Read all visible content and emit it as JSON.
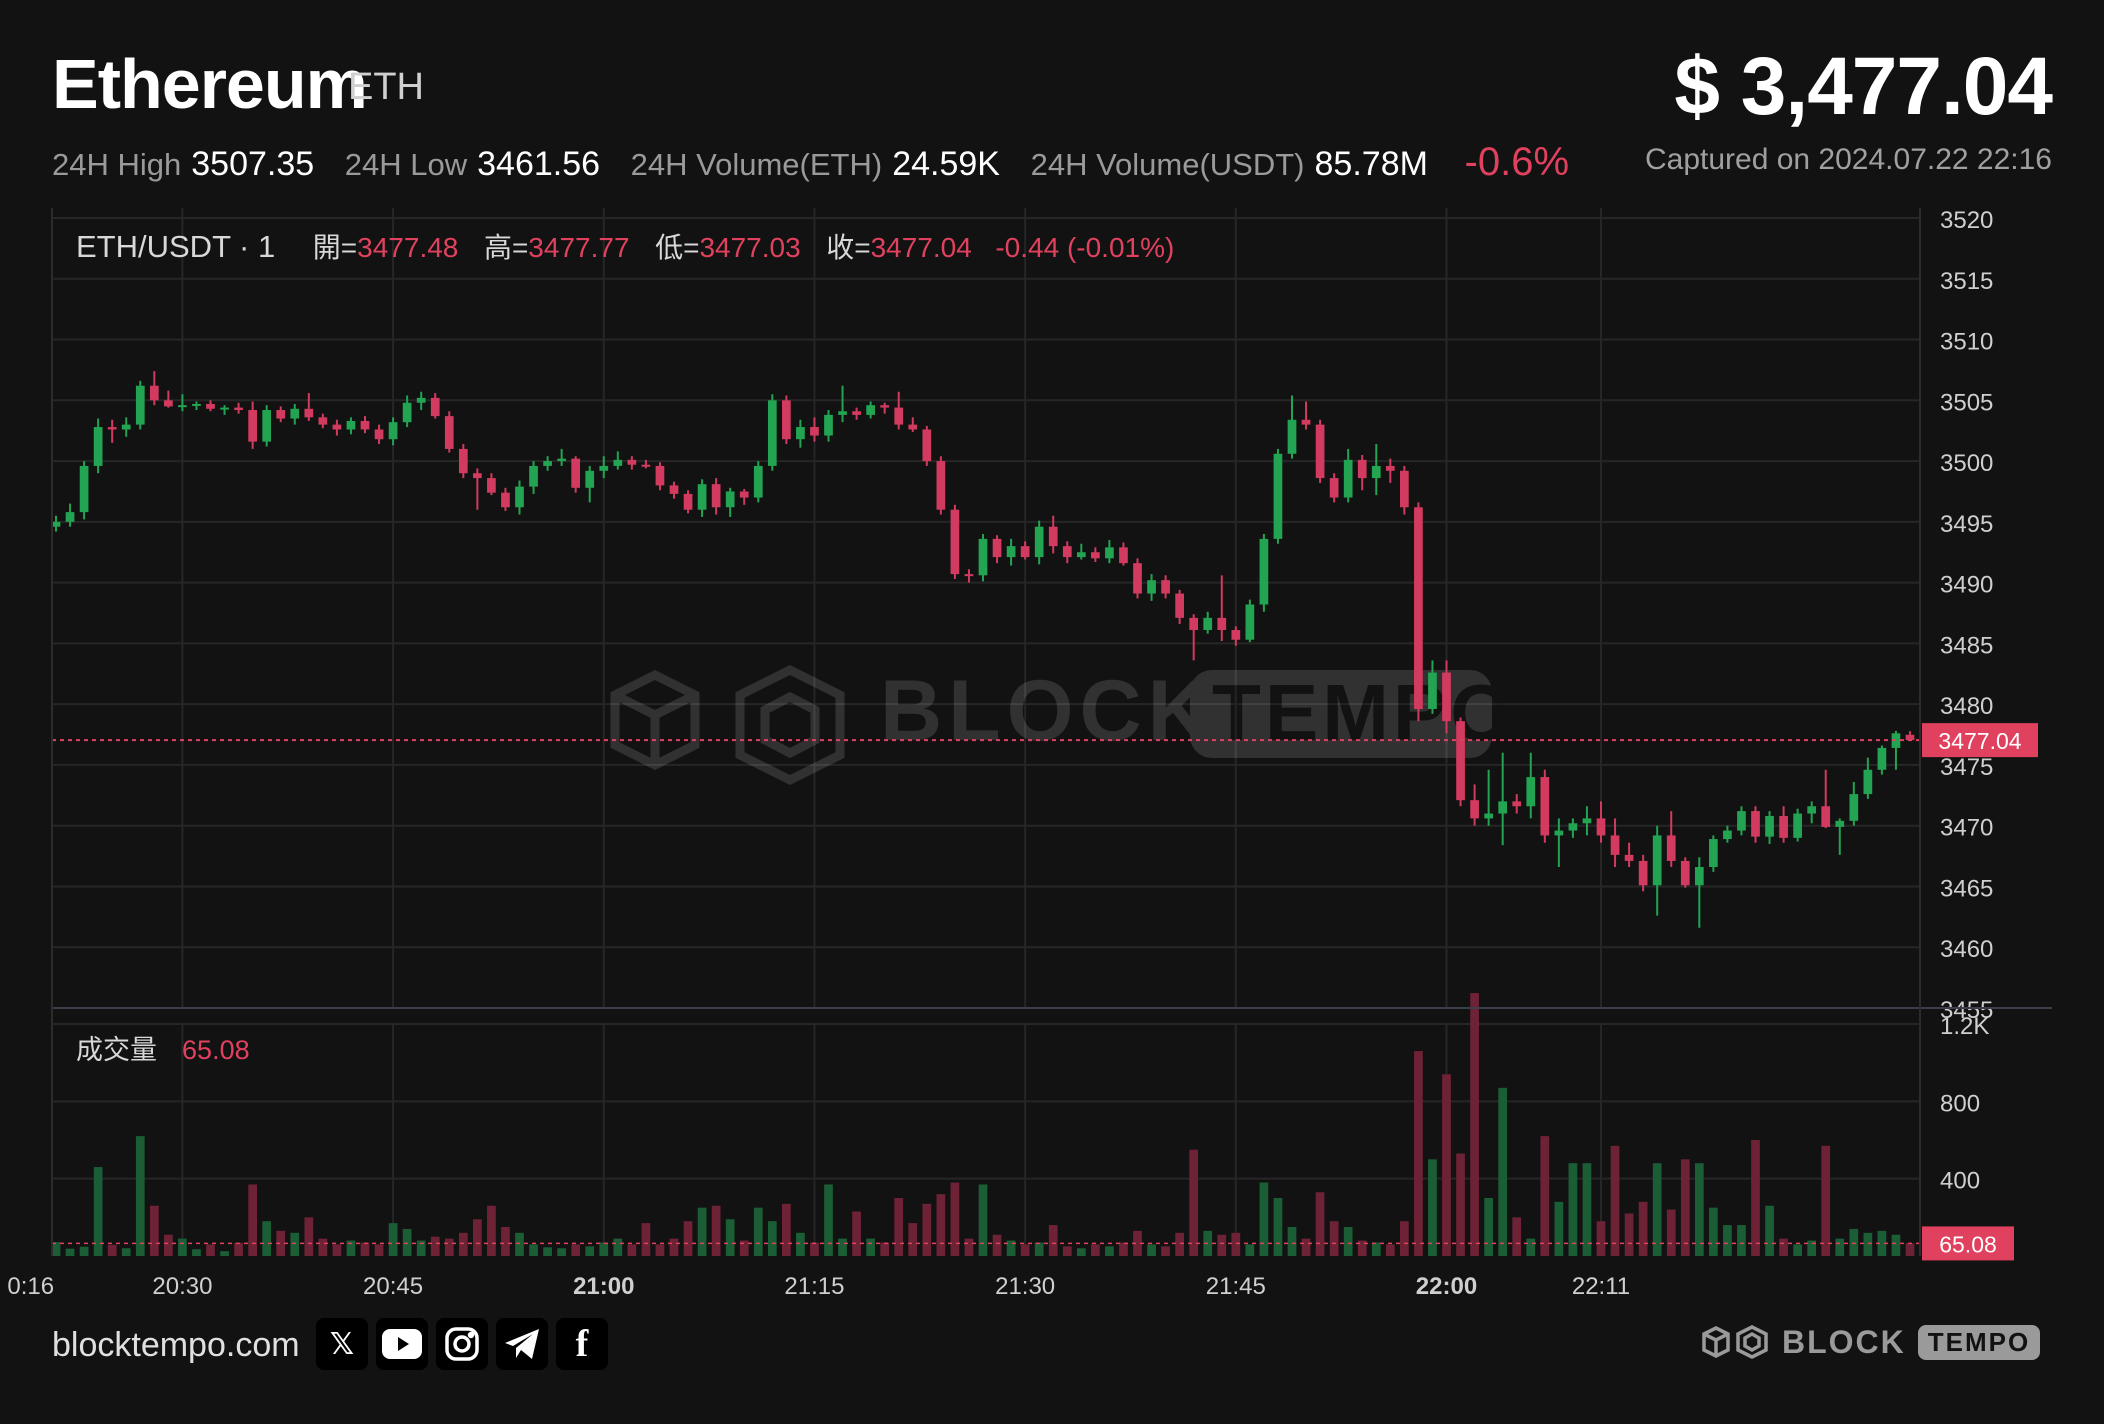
{
  "header": {
    "name": "Ethereum",
    "symbol": "ETH",
    "price": "$ 3,477.04",
    "captured": "Captured on 2024.07.22 22:16",
    "stats": [
      {
        "label": "24H High",
        "value": "3507.35"
      },
      {
        "label": "24H Low",
        "value": "3461.56"
      },
      {
        "label": "24H Volume(ETH)",
        "value": "24.59K"
      },
      {
        "label": "24H Volume(USDT)",
        "value": "85.78M"
      }
    ],
    "change": "-0.6%"
  },
  "ohlc_legend": {
    "pair": "ETH/USDT · 1",
    "open_label": "開=",
    "open": "3477.48",
    "high_label": "高=",
    "high": "3477.77",
    "low_label": "低=",
    "low": "3477.03",
    "close_label": "收=",
    "close": "3477.04",
    "change": "-0.44 (-0.01%)"
  },
  "volume_legend": {
    "label": "成交量",
    "value": "65.08"
  },
  "watermark": "BLOCKTEMPO",
  "footer": {
    "site": "blocktempo.com",
    "socials": [
      "x-icon",
      "youtube-icon",
      "instagram-icon",
      "telegram-icon",
      "facebook-icon"
    ],
    "brand_left": "BLOCK",
    "brand_right": "TEMPO"
  },
  "colors": {
    "up": "#22a452",
    "down": "#d23b5f",
    "bg": "#121212",
    "grid": "#262626",
    "label": "#e0415e"
  },
  "chart_data": {
    "type": "candlestick",
    "interval": "1m",
    "x_labels": [
      "0:16",
      "20:30",
      "20:45",
      "21:00",
      "21:15",
      "21:30",
      "21:45",
      "22:00",
      "22:11"
    ],
    "y_ticks": [
      3455,
      3460,
      3465,
      3470,
      3475,
      3480,
      3485,
      3490,
      3495,
      3500,
      3505,
      3510,
      3515,
      3520
    ],
    "y_range": [
      3455,
      3520
    ],
    "vol_ticks": [
      "400",
      "800",
      "1.2K"
    ],
    "vol_range": [
      0,
      1200
    ],
    "last_price_label": "3477.04",
    "last_volume_label": "65.08",
    "candles": [
      [
        3494.6,
        3495.5,
        3494.2,
        3495.0,
        72
      ],
      [
        3495.0,
        3496.5,
        3494.6,
        3495.8,
        38
      ],
      [
        3495.8,
        3500.0,
        3495.2,
        3499.6,
        48
      ],
      [
        3499.6,
        3503.5,
        3499.0,
        3502.8,
        460
      ],
      [
        3502.8,
        3503.4,
        3501.5,
        3502.6,
        58
      ],
      [
        3502.6,
        3503.6,
        3502.0,
        3503.0,
        40
      ],
      [
        3503.0,
        3506.6,
        3502.6,
        3506.2,
        620
      ],
      [
        3506.2,
        3507.4,
        3504.6,
        3505.0,
        260
      ],
      [
        3505.0,
        3505.8,
        3504.4,
        3504.5,
        110
      ],
      [
        3504.5,
        3505.5,
        3504.1,
        3504.6,
        90
      ],
      [
        3504.6,
        3504.9,
        3504.2,
        3504.7,
        35
      ],
      [
        3504.7,
        3505.0,
        3504.1,
        3504.3,
        60
      ],
      [
        3504.3,
        3504.6,
        3503.8,
        3504.4,
        25
      ],
      [
        3504.4,
        3504.8,
        3503.9,
        3504.2,
        68
      ],
      [
        3504.2,
        3504.9,
        3501.0,
        3501.6,
        370
      ],
      [
        3501.6,
        3504.6,
        3501.2,
        3504.2,
        180
      ],
      [
        3504.2,
        3504.5,
        3503.2,
        3503.5,
        130
      ],
      [
        3503.5,
        3504.7,
        3503.0,
        3504.3,
        120
      ],
      [
        3504.3,
        3505.6,
        3503.3,
        3503.6,
        200
      ],
      [
        3503.6,
        3503.9,
        3502.7,
        3503.0,
        90
      ],
      [
        3503.0,
        3503.4,
        3502.1,
        3502.6,
        60
      ],
      [
        3502.6,
        3503.6,
        3502.2,
        3503.3,
        80
      ],
      [
        3503.3,
        3503.7,
        3502.3,
        3502.6,
        70
      ],
      [
        3502.6,
        3503.0,
        3501.4,
        3501.8,
        60
      ],
      [
        3501.8,
        3503.6,
        3501.3,
        3503.2,
        170
      ],
      [
        3503.2,
        3505.4,
        3502.8,
        3504.8,
        140
      ],
      [
        3504.8,
        3505.7,
        3504.2,
        3505.2,
        80
      ],
      [
        3505.2,
        3505.6,
        3503.5,
        3503.7,
        100
      ],
      [
        3503.7,
        3504.1,
        3500.7,
        3501.0,
        90
      ],
      [
        3501.0,
        3501.4,
        3498.6,
        3499.0,
        120
      ],
      [
        3499.0,
        3499.4,
        3496.0,
        3498.6,
        190
      ],
      [
        3498.6,
        3499.0,
        3497.2,
        3497.4,
        260
      ],
      [
        3497.4,
        3497.8,
        3495.9,
        3496.2,
        150
      ],
      [
        3496.2,
        3498.4,
        3495.6,
        3497.9,
        120
      ],
      [
        3497.9,
        3500.0,
        3497.3,
        3499.6,
        60
      ],
      [
        3499.6,
        3500.4,
        3499.2,
        3500.0,
        45
      ],
      [
        3500.0,
        3501.0,
        3499.6,
        3500.2,
        40
      ],
      [
        3500.2,
        3500.4,
        3497.4,
        3497.8,
        60
      ],
      [
        3497.8,
        3499.6,
        3496.6,
        3499.2,
        50
      ],
      [
        3499.2,
        3500.4,
        3498.6,
        3499.6,
        70
      ],
      [
        3499.6,
        3500.8,
        3499.3,
        3500.1,
        90
      ],
      [
        3500.1,
        3500.4,
        3499.3,
        3499.7,
        60
      ],
      [
        3499.7,
        3500.1,
        3499.4,
        3499.6,
        170
      ],
      [
        3499.6,
        3499.9,
        3497.6,
        3498.0,
        60
      ],
      [
        3498.0,
        3498.3,
        3496.9,
        3497.3,
        90
      ],
      [
        3497.3,
        3497.6,
        3495.7,
        3496.0,
        180
      ],
      [
        3496.0,
        3498.5,
        3495.4,
        3498.1,
        250
      ],
      [
        3498.1,
        3498.6,
        3495.6,
        3496.2,
        260
      ],
      [
        3496.2,
        3497.8,
        3495.4,
        3497.5,
        190
      ],
      [
        3497.5,
        3497.7,
        3496.4,
        3497.0,
        80
      ],
      [
        3497.0,
        3500.0,
        3496.6,
        3499.6,
        250
      ],
      [
        3499.6,
        3505.5,
        3499.2,
        3505.0,
        180
      ],
      [
        3505.0,
        3505.4,
        3501.4,
        3501.8,
        270
      ],
      [
        3501.8,
        3503.4,
        3501.1,
        3502.8,
        120
      ],
      [
        3502.8,
        3503.6,
        3501.6,
        3502.1,
        70
      ],
      [
        3502.1,
        3504.2,
        3501.6,
        3503.8,
        370
      ],
      [
        3503.8,
        3506.2,
        3503.2,
        3504.1,
        90
      ],
      [
        3504.1,
        3504.4,
        3503.4,
        3503.8,
        230
      ],
      [
        3503.8,
        3504.9,
        3503.5,
        3504.6,
        90
      ],
      [
        3504.6,
        3504.8,
        3503.9,
        3504.4,
        70
      ],
      [
        3504.4,
        3505.7,
        3502.6,
        3503.0,
        300
      ],
      [
        3503.0,
        3503.6,
        3502.4,
        3502.6,
        170
      ],
      [
        3502.6,
        3502.9,
        3499.6,
        3500.0,
        270
      ],
      [
        3500.0,
        3500.4,
        3495.6,
        3496.0,
        320
      ],
      [
        3496.0,
        3496.4,
        3490.3,
        3490.7,
        380
      ],
      [
        3490.7,
        3491.1,
        3490.0,
        3490.6,
        90
      ],
      [
        3490.6,
        3494.0,
        3490.1,
        3493.6,
        370
      ],
      [
        3493.6,
        3493.9,
        3491.6,
        3492.1,
        110
      ],
      [
        3492.1,
        3493.6,
        3491.4,
        3493.0,
        80
      ],
      [
        3493.0,
        3493.4,
        3491.9,
        3492.1,
        60
      ],
      [
        3492.1,
        3495.1,
        3491.5,
        3494.6,
        70
      ],
      [
        3494.6,
        3495.5,
        3492.4,
        3493.0,
        160
      ],
      [
        3493.0,
        3493.4,
        3491.6,
        3492.1,
        50
      ],
      [
        3492.1,
        3493.2,
        3491.9,
        3492.5,
        40
      ],
      [
        3492.5,
        3492.9,
        3491.7,
        3492.0,
        60
      ],
      [
        3492.0,
        3493.5,
        3491.6,
        3492.9,
        50
      ],
      [
        3492.9,
        3493.3,
        3491.4,
        3491.6,
        70
      ],
      [
        3491.6,
        3492.0,
        3488.7,
        3489.1,
        130
      ],
      [
        3489.1,
        3490.7,
        3488.5,
        3490.2,
        60
      ],
      [
        3490.2,
        3490.6,
        3488.7,
        3489.1,
        50
      ],
      [
        3489.1,
        3489.4,
        3486.6,
        3487.1,
        120
      ],
      [
        3487.1,
        3487.4,
        3483.6,
        3486.1,
        550
      ],
      [
        3486.1,
        3487.6,
        3485.8,
        3487.1,
        130
      ],
      [
        3487.1,
        3490.6,
        3485.2,
        3486.1,
        110
      ],
      [
        3486.1,
        3486.4,
        3484.8,
        3485.3,
        120
      ],
      [
        3485.3,
        3488.6,
        3485.1,
        3488.2,
        60
      ],
      [
        3488.2,
        3494.0,
        3487.6,
        3493.6,
        380
      ],
      [
        3493.6,
        3501.0,
        3493.2,
        3500.6,
        300
      ],
      [
        3500.6,
        3505.4,
        3500.2,
        3503.4,
        150
      ],
      [
        3503.4,
        3504.9,
        3502.6,
        3503.0,
        90
      ],
      [
        3503.0,
        3503.4,
        3498.2,
        3498.6,
        330
      ],
      [
        3498.6,
        3499.0,
        3496.6,
        3497.0,
        180
      ],
      [
        3497.0,
        3501.0,
        3496.6,
        3500.1,
        150
      ],
      [
        3500.1,
        3500.5,
        3497.6,
        3498.6,
        80
      ],
      [
        3498.6,
        3501.4,
        3497.2,
        3499.6,
        70
      ],
      [
        3499.6,
        3500.2,
        3498.2,
        3499.2,
        60
      ],
      [
        3499.2,
        3499.6,
        3495.6,
        3496.2,
        180
      ],
      [
        3496.2,
        3496.6,
        3478.6,
        3479.6,
        1060
      ],
      [
        3479.6,
        3483.6,
        3479.2,
        3482.6,
        500
      ],
      [
        3482.6,
        3483.6,
        3477.6,
        3478.6,
        940
      ],
      [
        3478.6,
        3478.9,
        3471.6,
        3472.1,
        530
      ],
      [
        3472.1,
        3473.4,
        3470.0,
        3470.6,
        1360
      ],
      [
        3470.6,
        3474.6,
        3470.0,
        3471.0,
        300
      ],
      [
        3471.0,
        3476.0,
        3468.4,
        3472.0,
        870
      ],
      [
        3472.0,
        3472.6,
        3471.0,
        3471.6,
        200
      ],
      [
        3471.6,
        3476.0,
        3470.6,
        3474.0,
        90
      ],
      [
        3474.0,
        3474.6,
        3468.6,
        3469.2,
        620
      ],
      [
        3469.2,
        3470.6,
        3466.6,
        3469.6,
        280
      ],
      [
        3469.6,
        3470.6,
        3469.0,
        3470.2,
        480
      ],
      [
        3470.2,
        3471.6,
        3469.2,
        3470.6,
        480
      ],
      [
        3470.6,
        3472.0,
        3468.6,
        3469.2,
        180
      ],
      [
        3469.2,
        3470.6,
        3466.6,
        3467.6,
        570
      ],
      [
        3467.6,
        3468.6,
        3466.6,
        3467.1,
        220
      ],
      [
        3467.1,
        3467.6,
        3464.6,
        3465.1,
        280
      ],
      [
        3465.1,
        3470.0,
        3462.6,
        3469.2,
        480
      ],
      [
        3469.2,
        3471.2,
        3466.6,
        3467.1,
        240
      ],
      [
        3467.1,
        3467.4,
        3464.9,
        3465.1,
        500
      ],
      [
        3465.1,
        3467.4,
        3461.6,
        3466.6,
        480
      ],
      [
        3466.6,
        3469.2,
        3466.2,
        3468.9,
        250
      ],
      [
        3468.9,
        3470.0,
        3468.6,
        3469.6,
        160
      ],
      [
        3469.6,
        3471.6,
        3469.2,
        3471.2,
        160
      ],
      [
        3471.2,
        3471.6,
        3468.6,
        3469.1,
        600
      ],
      [
        3469.1,
        3471.2,
        3468.5,
        3470.8,
        260
      ],
      [
        3470.8,
        3471.6,
        3468.6,
        3469.0,
        90
      ],
      [
        3469.0,
        3471.4,
        3468.7,
        3471.0,
        60
      ],
      [
        3471.0,
        3472.0,
        3470.2,
        3471.6,
        80
      ],
      [
        3471.6,
        3474.6,
        3469.8,
        3469.9,
        570
      ],
      [
        3469.9,
        3470.6,
        3467.6,
        3470.4,
        90
      ],
      [
        3470.4,
        3473.6,
        3470.0,
        3472.6,
        140
      ],
      [
        3472.6,
        3475.6,
        3472.2,
        3474.6,
        120
      ],
      [
        3474.6,
        3476.6,
        3474.2,
        3476.4,
        130
      ],
      [
        3476.4,
        3477.8,
        3474.6,
        3477.6,
        110
      ],
      [
        3477.48,
        3477.77,
        3477.03,
        3477.04,
        65.08
      ]
    ]
  }
}
